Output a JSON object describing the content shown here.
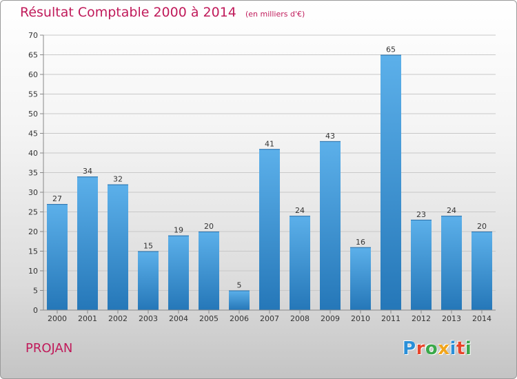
{
  "title": "Résultat Comptable 2000 à 2014",
  "subtitle": "(en milliers d'€)",
  "footer_label": "PROJAN",
  "logo": {
    "text": "Proxiti",
    "letters": [
      {
        "ch": "P",
        "color": "#2a8fd8"
      },
      {
        "ch": "r",
        "color": "#e8442a"
      },
      {
        "ch": "o",
        "color": "#3aa84a"
      },
      {
        "ch": "x",
        "color": "#f2a51a"
      },
      {
        "ch": "i",
        "color": "#2a8fd8"
      },
      {
        "ch": "t",
        "color": "#e8442a"
      },
      {
        "ch": "i",
        "color": "#3aa84a"
      }
    ]
  },
  "colors": {
    "bar_top": "#5cb0ea",
    "bar_bottom": "#2577b8",
    "text": "#333333",
    "accent": "#c01a5a"
  },
  "chart_data": {
    "type": "bar",
    "title": "Résultat Comptable 2000 à 2014",
    "subtitle": "(en milliers d'€)",
    "categories": [
      "2000",
      "2001",
      "2002",
      "2003",
      "2004",
      "2005",
      "2006",
      "2007",
      "2008",
      "2009",
      "2010",
      "2011",
      "2012",
      "2013",
      "2014"
    ],
    "values": [
      27,
      34,
      32,
      15,
      19,
      20,
      5,
      41,
      24,
      43,
      16,
      65,
      23,
      24,
      20
    ],
    "yticks": [
      0,
      5,
      10,
      15,
      20,
      25,
      30,
      35,
      40,
      45,
      50,
      55,
      60,
      65,
      70
    ],
    "ylim": [
      0,
      70
    ],
    "grid": true,
    "data_labels": true
  }
}
